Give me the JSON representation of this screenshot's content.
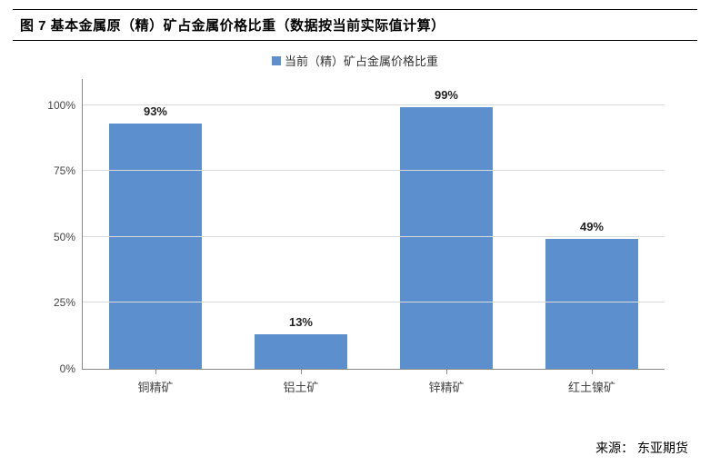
{
  "title": "图 7 基本金属原（精）矿占金属价格比重（数据按当前实际值计算）",
  "legend_label": "当前（精）矿占金属价格比重",
  "chart": {
    "type": "bar",
    "categories": [
      "铜精矿",
      "铝土矿",
      "锌精矿",
      "红土镍矿"
    ],
    "values": [
      93,
      13,
      99,
      49
    ],
    "value_labels": [
      "93%",
      "13%",
      "99%",
      "49%"
    ],
    "bar_color": "#5b8fce",
    "legend_swatch_color": "#5b8fce",
    "ylim_max": 110,
    "ytick_values": [
      0,
      25,
      50,
      75,
      100
    ],
    "ytick_labels": [
      "0%",
      "25%",
      "50%",
      "75%",
      "100%"
    ],
    "grid_color": "#d9d9d9",
    "axis_color": "#888888",
    "background_color": "#ffffff",
    "label_fontsize": 13,
    "tick_fontsize": 12
  },
  "source_label": "来源：",
  "source_value": "东亚期货"
}
